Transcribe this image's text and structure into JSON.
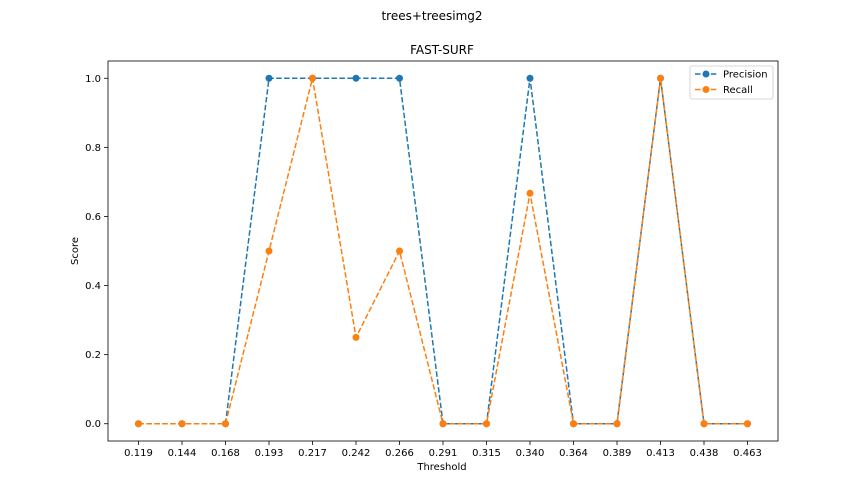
{
  "figure": {
    "suptitle": "trees+treesimg2"
  },
  "chart_data": {
    "type": "line",
    "title": "FAST-SURF",
    "xlabel": "Threshold",
    "ylabel": "Score",
    "categories": [
      "0.119",
      "0.144",
      "0.168",
      "0.193",
      "0.217",
      "0.242",
      "0.266",
      "0.291",
      "0.315",
      "0.340",
      "0.364",
      "0.389",
      "0.413",
      "0.438",
      "0.463"
    ],
    "ylim": [
      -0.05,
      1.05
    ],
    "yticks": [
      "0.0",
      "0.2",
      "0.4",
      "0.6",
      "0.8",
      "1.0"
    ],
    "ytick_values": [
      0,
      0.2,
      0.4,
      0.6,
      0.8,
      1.0
    ],
    "grid": false,
    "legend_position": "top-right",
    "series": [
      {
        "name": "Precision",
        "color": "#1f77b4",
        "values": [
          0,
          0,
          0,
          1,
          1,
          1,
          1,
          0,
          0,
          1,
          0,
          0,
          1,
          0,
          0
        ]
      },
      {
        "name": "Recall",
        "color": "#ff7f0e",
        "values": [
          0,
          0,
          0,
          0.5,
          1,
          0.25,
          0.5,
          0,
          0,
          0.667,
          0,
          0,
          1,
          0,
          0
        ]
      }
    ]
  }
}
